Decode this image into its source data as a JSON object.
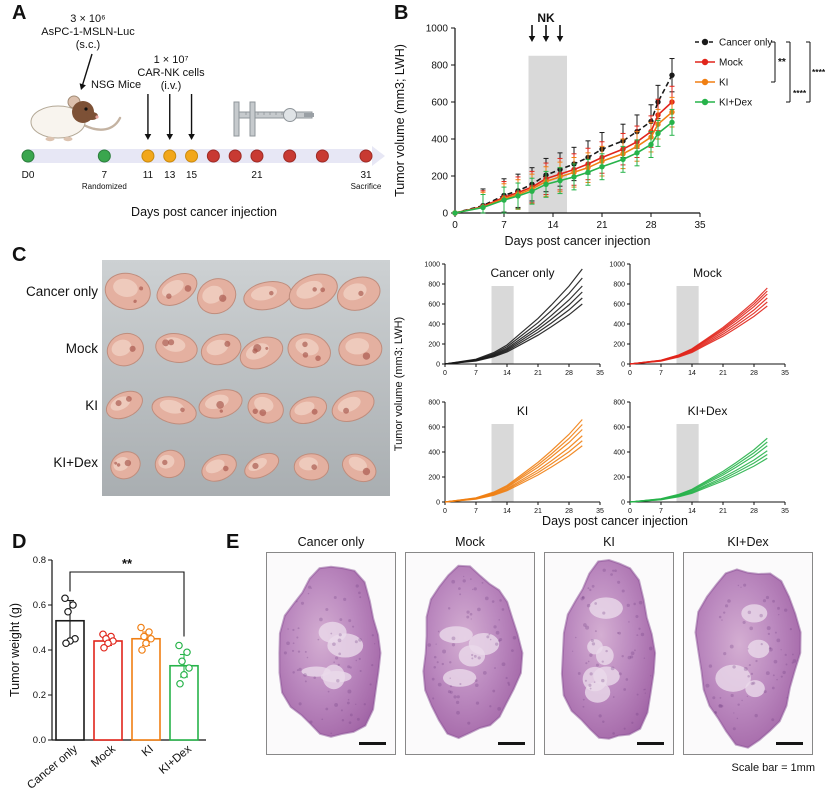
{
  "figure": {
    "panel_labels": {
      "A": "A",
      "B": "B",
      "C": "C",
      "D": "D",
      "E": "E"
    }
  },
  "colors": {
    "cancer_only": "#1a1a1a",
    "mock": "#e1251b",
    "ki": "#f07f13",
    "ki_dex": "#27b34a",
    "band": "#d9d9d9"
  },
  "panel_a": {
    "inoculation_lines": [
      "3 × 10⁶",
      "AsPC-1-MSLN-Luc",
      "(s.c.)"
    ],
    "mice_label": "NSG Mice",
    "nk_dose_lines": [
      "1 × 10⁷",
      "CAR-NK cells",
      "(i.v.)"
    ],
    "axis_label": "Days post cancer injection",
    "timeline_colors": {
      "green": {
        "fill": "#3aa64e",
        "stroke": "#2c7e3c"
      },
      "orange": {
        "fill": "#f2a71b",
        "stroke": "#c98a0e"
      },
      "red": {
        "fill": "#c83a32",
        "stroke": "#9e2b25"
      }
    },
    "timeline": {
      "points": [
        {
          "day": 0,
          "label": "D0",
          "color": "green",
          "sublabel": ""
        },
        {
          "day": 7,
          "label": "7",
          "color": "green",
          "sublabel": "Randomized"
        },
        {
          "day": 11,
          "label": "11",
          "color": "orange",
          "sublabel": ""
        },
        {
          "day": 13,
          "label": "13",
          "color": "orange",
          "sublabel": ""
        },
        {
          "day": 15,
          "label": "15",
          "color": "orange",
          "sublabel": ""
        },
        {
          "day": 17,
          "label": "",
          "color": "red",
          "sublabel": ""
        },
        {
          "day": 19,
          "label": "",
          "color": "red",
          "sublabel": ""
        },
        {
          "day": 21,
          "label": "21",
          "color": "red",
          "sublabel": ""
        },
        {
          "day": 24,
          "label": "",
          "color": "red",
          "sublabel": ""
        },
        {
          "day": 27,
          "label": "",
          "color": "red",
          "sublabel": ""
        },
        {
          "day": 31,
          "label": "31",
          "color": "red",
          "sublabel": "Sacrifice"
        }
      ],
      "nk_arrow_days": [
        11,
        13,
        15
      ]
    }
  },
  "panel_c_photo": {
    "row_labels": [
      "Cancer only",
      "Mock",
      "KI",
      "KI+Dex"
    ]
  },
  "panel_e": {
    "titles": [
      "Cancer only",
      "Mock",
      "KI",
      "KI+Dex"
    ],
    "scale_note": "Scale bar = 1mm"
  },
  "chart_data": [
    {
      "id": "panel_b",
      "type": "line",
      "ylabel": "Tumor volume (mm3; LWH)",
      "xlabel": "Days post cancer injection",
      "xlim": [
        0,
        35
      ],
      "ylim": [
        0,
        1000
      ],
      "xticks": [
        0,
        7,
        14,
        21,
        28,
        35
      ],
      "yticks": [
        0,
        200,
        400,
        600,
        800,
        1000
      ],
      "nk_label": "NK",
      "nk_arrow_days": [
        11,
        13,
        15
      ],
      "treatment_band": {
        "x0": 10.5,
        "x1": 16,
        "top": 850
      },
      "x": [
        0,
        4,
        7,
        9,
        11,
        13,
        15,
        17,
        19,
        21,
        24,
        26,
        28,
        29,
        31
      ],
      "series": [
        {
          "name": "Cancer only",
          "color": "#1a1a1a",
          "dashed": true,
          "error": 90,
          "values": [
            0,
            40,
            95,
            120,
            155,
            205,
            235,
            265,
            300,
            345,
            390,
            440,
            495,
            600,
            745
          ]
        },
        {
          "name": "Mock",
          "color": "#e1251b",
          "dashed": false,
          "error": 85,
          "values": [
            0,
            35,
            85,
            110,
            140,
            185,
            210,
            235,
            265,
            300,
            345,
            385,
            440,
            530,
            600
          ]
        },
        {
          "name": "KI",
          "color": "#f07f13",
          "dashed": false,
          "error": 80,
          "values": [
            0,
            32,
            78,
            100,
            130,
            170,
            195,
            220,
            245,
            280,
            320,
            360,
            410,
            480,
            545
          ]
        },
        {
          "name": "KI+Dex",
          "color": "#27b34a",
          "dashed": false,
          "error": 70,
          "values": [
            0,
            30,
            70,
            92,
            118,
            155,
            175,
            195,
            220,
            250,
            290,
            325,
            370,
            430,
            490
          ]
        }
      ],
      "significance": [
        "**",
        "****",
        "****"
      ],
      "legend_position": "right"
    },
    {
      "id": "panel_c",
      "type": "line-small-multiples",
      "ylabel": "Tumor volume (mm3; LWH)",
      "xlabel": "Days post cancer injection",
      "x": [
        0,
        7,
        11,
        14,
        17,
        21,
        24,
        28,
        31
      ],
      "xticks": [
        0,
        7,
        14,
        21,
        28,
        35
      ],
      "xlim": [
        0,
        35
      ],
      "treatment_band": {
        "x0": 10.5,
        "x1": 15.5
      },
      "subplots": [
        {
          "title": "Cancer only",
          "color": "#1a1a1a",
          "ylim": [
            0,
            1000
          ],
          "yticks": [
            0,
            200,
            400,
            600,
            800,
            1000
          ],
          "series": [
            [
              0,
              48,
              114,
              190,
              304,
              456,
              589,
              779,
              950
            ],
            [
              0,
              43,
              103,
              172,
              275,
              413,
              533,
              705,
              860
            ],
            [
              0,
              39,
              94,
              156,
              250,
              374,
              484,
              640,
              780
            ],
            [
              0,
              36,
              86,
              144,
              230,
              346,
              446,
              590,
              720
            ],
            [
              0,
              33,
              79,
              132,
              211,
              317,
              409,
              541,
              660
            ],
            [
              0,
              30,
              72,
              120,
              192,
              288,
              372,
              492,
              600
            ]
          ]
        },
        {
          "title": "Mock",
          "color": "#e1251b",
          "ylim": [
            0,
            1000
          ],
          "yticks": [
            0,
            200,
            400,
            600,
            800,
            1000
          ],
          "series": [
            [
              0,
              38,
              91,
              152,
              243,
              365,
              471,
              623,
              760
            ],
            [
              0,
              37,
              88,
              146,
              234,
              350,
              453,
              599,
              730
            ],
            [
              0,
              35,
              84,
              140,
              224,
              336,
              434,
              574,
              700
            ],
            [
              0,
              33,
              79,
              132,
              211,
              317,
              409,
              541,
              660
            ],
            [
              0,
              31,
              74,
              124,
              198,
              298,
              384,
              508,
              620
            ],
            [
              0,
              29,
              70,
              116,
              186,
              278,
              360,
              476,
              580
            ]
          ]
        },
        {
          "title": "KI",
          "color": "#f07f13",
          "ylim": [
            0,
            800
          ],
          "yticks": [
            0,
            200,
            400,
            600,
            800
          ],
          "series": [
            [
              0,
              33,
              79,
              132,
              211,
              317,
              409,
              541,
              660
            ],
            [
              0,
              31,
              74,
              124,
              198,
              298,
              384,
              508,
              620
            ],
            [
              0,
              29,
              70,
              116,
              186,
              278,
              360,
              476,
              580
            ],
            [
              0,
              27,
              64,
              106,
              170,
              254,
              329,
              435,
              530
            ],
            [
              0,
              25,
              59,
              98,
              157,
              235,
              304,
              402,
              490
            ],
            [
              0,
              23,
              54,
              90,
              144,
              216,
              279,
              369,
              450
            ]
          ]
        },
        {
          "title": "KI+Dex",
          "color": "#27b34a",
          "ylim": [
            0,
            800
          ],
          "yticks": [
            0,
            200,
            400,
            600,
            800
          ],
          "series": [
            [
              0,
              26,
              61,
              102,
              163,
              245,
              316,
              418,
              510
            ],
            [
              0,
              24,
              58,
              96,
              154,
              230,
              298,
              394,
              480
            ],
            [
              0,
              23,
              54,
              90,
              144,
              216,
              279,
              369,
              450
            ],
            [
              0,
              21,
              49,
              82,
              131,
              197,
              254,
              336,
              410
            ],
            [
              0,
              19,
              46,
              76,
              122,
              182,
              236,
              312,
              380
            ],
            [
              0,
              18,
              42,
              70,
              112,
              168,
              217,
              287,
              350
            ]
          ]
        }
      ]
    },
    {
      "id": "panel_d",
      "type": "bar",
      "ylabel": "Tumor weight (g)",
      "ylim": [
        0,
        0.8
      ],
      "yticks": [
        "0.0",
        "0.2",
        "0.4",
        "0.6",
        "0.8"
      ],
      "categories": [
        "Cancer only",
        "Mock",
        "KI",
        "KI+Dex"
      ],
      "colors": [
        "#1a1a1a",
        "#e1251b",
        "#f07f13",
        "#27b34a"
      ],
      "values": [
        0.53,
        0.44,
        0.45,
        0.33
      ],
      "errors": [
        0.09,
        0.02,
        0.03,
        0.05
      ],
      "points": [
        [
          0.63,
          0.6,
          0.57,
          0.45,
          0.44,
          0.43
        ],
        [
          0.47,
          0.46,
          0.45,
          0.44,
          0.43,
          0.41
        ],
        [
          0.5,
          0.48,
          0.46,
          0.45,
          0.43,
          0.4
        ],
        [
          0.42,
          0.39,
          0.35,
          0.32,
          0.29,
          0.25
        ]
      ],
      "significance": {
        "label": "**",
        "from": 0,
        "to": 3
      }
    }
  ]
}
